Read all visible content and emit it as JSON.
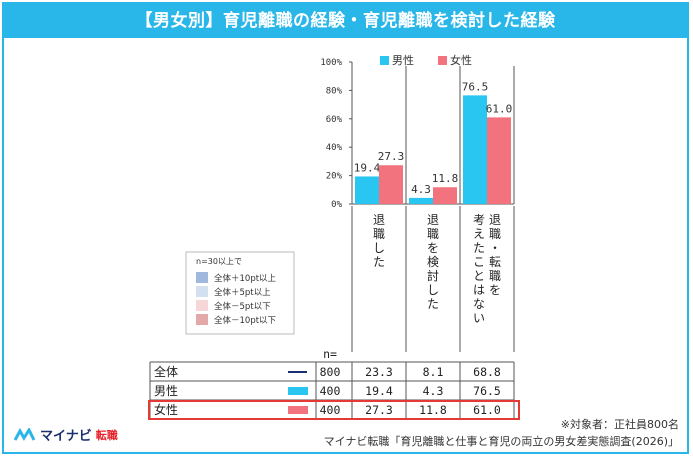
{
  "title": "【男女別】育児離職の経験・育児離職を検討した経験",
  "chart_data": {
    "type": "bar",
    "categories": [
      "退職した",
      "退職を検討した",
      "退職・転職を考えたことはない"
    ],
    "category_lines": [
      [
        "退",
        "職",
        "し",
        "た"
      ],
      [
        "退",
        "職",
        "を",
        "検",
        "討",
        "し",
        "た"
      ],
      [
        "退",
        "職",
        "・",
        "転",
        "職",
        "を"
      ],
      [
        "考",
        "え",
        "た",
        "こ",
        "と",
        "は",
        "な",
        "い"
      ]
    ],
    "ylim": [
      0,
      100
    ],
    "yticks": [
      "0%",
      "20%",
      "40%",
      "60%",
      "80%",
      "100%"
    ],
    "series": [
      {
        "name": "男性",
        "color": "#29c6f2",
        "values": [
          19.4,
          4.3,
          76.5
        ],
        "labels": [
          "19.4",
          "4.3",
          "76.5"
        ]
      },
      {
        "name": "女性",
        "color": "#f2737e",
        "values": [
          27.3,
          11.8,
          61.0
        ],
        "labels": [
          "27.3",
          "11.8",
          "61.0"
        ]
      }
    ],
    "table": {
      "n_header": "n=",
      "rows": [
        {
          "label": "全体",
          "n": "800",
          "values": [
            "23.3",
            "8.1",
            "68.8"
          ],
          "marker": "line"
        },
        {
          "label": "男性",
          "n": "400",
          "values": [
            "19.4",
            "4.3",
            "76.5"
          ],
          "marker": "blue"
        },
        {
          "label": "女性",
          "n": "400",
          "values": [
            "27.3",
            "11.8",
            "61.0"
          ],
          "marker": "pink"
        }
      ]
    },
    "significance_legend": {
      "title": "n=30以上で",
      "items": [
        {
          "label": "全体＋10pt以上",
          "color": "#9fb8dc"
        },
        {
          "label": "全体＋5pt以上",
          "color": "#d3e0f0"
        },
        {
          "label": "全体－5pt以下",
          "color": "#f6d6d6"
        },
        {
          "label": "全体－10pt以下",
          "color": "#e3a9a9"
        }
      ]
    }
  },
  "notes": {
    "target": "※対象者：正社員800名",
    "source": "マイナビ転職「育児離職と仕事と育児の両立の男女差実態調査(2026)」"
  },
  "logo": {
    "brand": "マイナビ",
    "sub": "転職"
  }
}
